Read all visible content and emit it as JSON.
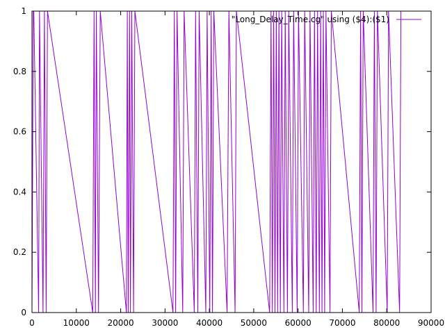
{
  "chart_data": {
    "type": "line",
    "title": "",
    "xlabel": "",
    "ylabel": "",
    "xlim": [
      0,
      90000
    ],
    "ylim": [
      0,
      1
    ],
    "x_ticks": [
      0,
      10000,
      20000,
      30000,
      40000,
      50000,
      60000,
      70000,
      80000,
      90000
    ],
    "y_ticks": [
      0,
      0.2,
      0.4,
      0.6,
      0.8,
      1
    ],
    "x_tick_labels": [
      "0",
      "10000",
      "20000",
      "30000",
      "40000",
      "50000",
      "60000",
      "70000",
      "80000",
      "90000"
    ],
    "y_tick_labels": [
      "0",
      "0.2",
      "0.4",
      "0.6",
      "0.8",
      "1"
    ],
    "grid": false,
    "legend_position": "top-right",
    "series": [
      {
        "name": "\"Long_Delay_Time.cg\" using ($4):($1)",
        "color": "#9400d3",
        "x": [
          0,
          300,
          400,
          1500,
          1700,
          2500,
          2800,
          3200,
          3500,
          13700,
          14000,
          14300,
          14500,
          15000,
          15400,
          21300,
          21500,
          21700,
          22000,
          22200,
          22500,
          22900,
          23200,
          31800,
          32100,
          32400,
          32700,
          34000,
          34300,
          36600,
          36900,
          37400,
          37700,
          39200,
          39500,
          40100,
          40400,
          40700,
          41000,
          44000,
          44400,
          45800,
          46100,
          53600,
          53900,
          54200,
          54500,
          54800,
          55100,
          55400,
          55700,
          56000,
          56300,
          56800,
          57100,
          57600,
          57900,
          58700,
          59000,
          59800,
          60100,
          61200,
          61500,
          62400,
          62700,
          63400,
          63700,
          64100,
          64400,
          64800,
          65100,
          65400,
          65700,
          66000,
          66300,
          67200,
          67500,
          73800,
          74100,
          74400,
          74700,
          76900,
          77200,
          77600,
          77900,
          80100,
          80400,
          82900,
          83200
        ],
        "y": [
          0,
          1,
          1,
          0,
          1,
          0,
          1,
          0,
          1,
          0,
          1,
          0,
          1,
          0,
          1,
          0,
          1,
          0,
          1,
          0,
          1,
          0,
          1,
          0,
          1,
          0,
          1,
          0,
          1,
          0,
          1,
          0,
          1,
          0,
          1,
          0,
          1,
          0,
          1,
          0,
          1,
          0,
          1,
          0,
          1,
          0,
          1,
          0,
          1,
          0,
          1,
          0,
          1,
          0,
          1,
          0,
          1,
          0,
          1,
          0,
          1,
          0,
          1,
          0,
          1,
          0,
          1,
          0,
          1,
          0,
          1,
          0,
          1,
          0,
          1,
          0,
          1,
          0,
          1,
          0,
          1,
          0,
          1,
          0,
          1,
          0,
          1,
          0,
          1
        ]
      }
    ]
  }
}
